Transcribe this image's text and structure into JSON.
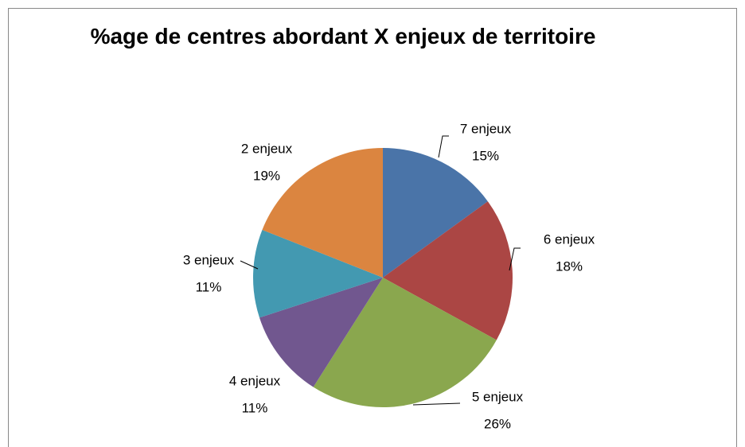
{
  "chart_data": {
    "type": "pie",
    "title": "%age de centres abordant X enjeux de territoire",
    "categories": [
      "7 enjeux",
      "6 enjeux",
      "5 enjeux",
      "4 enjeux",
      "3 enjeux",
      "2 enjeux"
    ],
    "values": [
      15,
      18,
      26,
      11,
      11,
      19
    ],
    "value_labels": [
      "15%",
      "18%",
      "26%",
      "11%",
      "11%",
      "19%"
    ],
    "colors": [
      "#4a74a8",
      "#ab4644",
      "#8aa74e",
      "#71578f",
      "#4399b1",
      "#db8540"
    ]
  }
}
